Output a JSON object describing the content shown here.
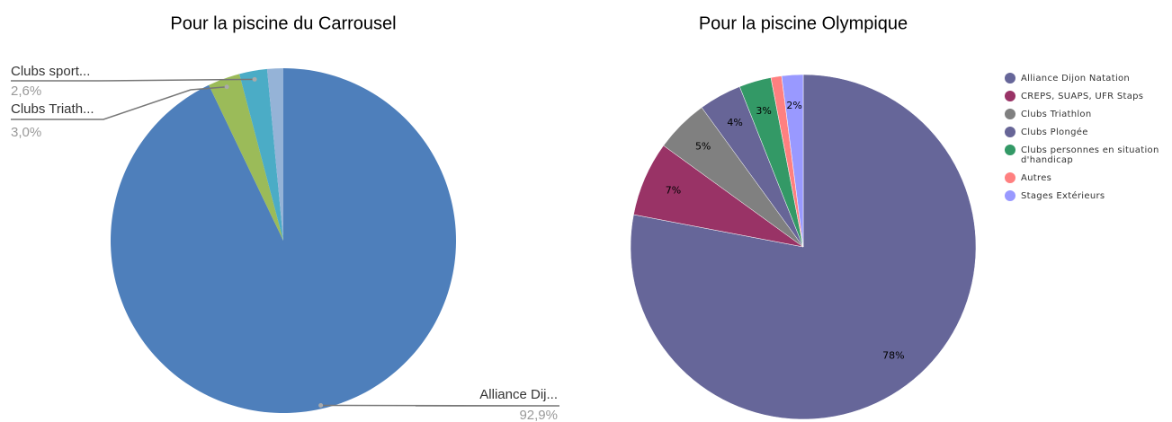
{
  "chart_data": [
    {
      "type": "pie",
      "title": "Pour la piscine du Carrousel",
      "categories": [
        "Alliance Dij...",
        "Clubs Triath...",
        "Clubs sport...",
        null
      ],
      "values": [
        92.9,
        3.0,
        2.6,
        1.5
      ],
      "value_labels": [
        "92,9%",
        "3,0%",
        "2,6%",
        null
      ],
      "colors": [
        "#4e7fbb",
        "#9bbb59",
        "#4bacc6",
        "#95b3d7"
      ]
    },
    {
      "type": "pie",
      "title": "Pour la piscine Olympique",
      "categories": [
        "Alliance Dijon Natation",
        "CREPS, SUAPS, UFR Staps",
        "Clubs Triathlon",
        "Clubs Plongée",
        "Clubs personnes en situation d'handicap",
        "Autres",
        "Stages Extérieurs"
      ],
      "values": [
        78,
        7,
        5,
        4,
        3,
        1,
        2
      ],
      "value_labels": [
        "78%",
        "7%",
        "5%",
        "4%",
        "3%",
        null,
        "2%"
      ],
      "colors": [
        "#666699",
        "#993366",
        "#808080",
        "#676597",
        "#339966",
        "#ff8080",
        "#9999ff"
      ],
      "legend": "right"
    }
  ]
}
